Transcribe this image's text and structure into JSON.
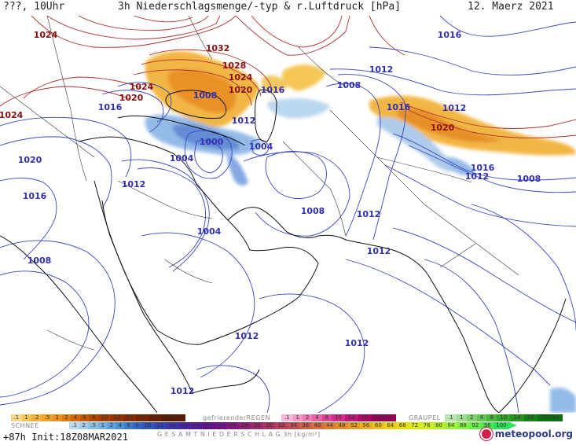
{
  "header": {
    "location_time": "???, 10Uhr",
    "title": "3h Niederschlagsmenge/-typ & r.Luftdruck [hPa]",
    "date": "12. Maerz 2021"
  },
  "isobar_labels": [
    {
      "text": "1024",
      "color": "#8a1010"
    },
    {
      "text": "1032",
      "color": "#8a1010"
    },
    {
      "text": "1028",
      "color": "#8a1010"
    },
    {
      "text": "1024",
      "color": "#8a1010"
    },
    {
      "text": "1024",
      "color": "#8a1010"
    },
    {
      "text": "1020",
      "color": "#8a1010"
    },
    {
      "text": "1020",
      "color": "#8a1010"
    },
    {
      "text": "1024",
      "color": "#8a1010"
    },
    {
      "text": "1016",
      "color": "#3030b0"
    },
    {
      "text": "1008",
      "color": "#3030b0"
    },
    {
      "text": "1016",
      "color": "#3030b0"
    },
    {
      "text": "1012",
      "color": "#3030b0"
    },
    {
      "text": "1008",
      "color": "#3030b0"
    },
    {
      "text": "1016",
      "color": "#3030b0"
    },
    {
      "text": "1016",
      "color": "#3030b0"
    },
    {
      "text": "1012",
      "color": "#3030b0"
    },
    {
      "text": "1020",
      "color": "#8a1010"
    },
    {
      "text": "1012",
      "color": "#3030b0"
    },
    {
      "text": "1000",
      "color": "#3030b0"
    },
    {
      "text": "1004",
      "color": "#3030b0"
    },
    {
      "text": "1004",
      "color": "#3030b0"
    },
    {
      "text": "1020",
      "color": "#3030b0"
    },
    {
      "text": "1016",
      "color": "#3030b0"
    },
    {
      "text": "1012",
      "color": "#3030b0"
    },
    {
      "text": "1016",
      "color": "#3030b0"
    },
    {
      "text": "1012",
      "color": "#3030b0"
    },
    {
      "text": "1008",
      "color": "#3030b0"
    },
    {
      "text": "1008",
      "color": "#3030b0"
    },
    {
      "text": "1012",
      "color": "#3030b0"
    },
    {
      "text": "1004",
      "color": "#3030b0"
    },
    {
      "text": "1012",
      "color": "#3030b0"
    },
    {
      "text": "1008",
      "color": "#3030b0"
    },
    {
      "text": "1012",
      "color": "#3030b0"
    },
    {
      "text": "1012",
      "color": "#3030b0"
    },
    {
      "text": "1012",
      "color": "#3030b0"
    }
  ],
  "legend": {
    "snow_label": "SCHNEE",
    "rain_label": "gefrierenderREGEN",
    "graupel_label": "GRAUPEL",
    "total_label": "G E S A M T N I E D E R S C H L A G   3h   [kg/m²]",
    "snow_values": [
      ".1",
      "1",
      ".2",
      ".5",
      "1",
      "2",
      "4",
      "6",
      "8",
      "10",
      "12",
      "14",
      "16",
      "18",
      "2025+"
    ],
    "snow_colors": [
      "#f5d68a",
      "#f3c65a",
      "#f0b43c",
      "#eea22a",
      "#ec901e",
      "#e07b14",
      "#d2680e",
      "#c25808",
      "#b04a06",
      "#a23e05",
      "#933404",
      "#852b03",
      "#762402",
      "#6a1e02",
      "#5c1902"
    ],
    "rain_values": [
      ".1",
      "1",
      "2",
      "4",
      "8",
      "10",
      "14",
      "16",
      "2025+"
    ],
    "rain_colors": [
      "#f7b7d6",
      "#f39ac6",
      "#ee7cb5",
      "#e860a5",
      "#df4494",
      "#d22c84",
      "#c21674",
      "#b00664",
      "#9c0056"
    ],
    "graupel_values": [
      ".1",
      "1",
      "2",
      "4",
      "8",
      "10",
      "14",
      "16",
      "2025+"
    ],
    "graupel_colors": [
      "#b9e6b0",
      "#9ddc91",
      "#80d072",
      "#64c455",
      "#4ab63b",
      "#36a52b",
      "#26921f",
      "#188016",
      "#0e6e10"
    ],
    "total_values": [
      ".1",
      "2",
      ".5",
      "1",
      "2",
      "4",
      "6",
      "8",
      "10",
      "12",
      "14",
      "16",
      "18",
      "20",
      "22",
      "24",
      "26",
      "28",
      "30",
      "32",
      "34",
      "36",
      "40",
      "44",
      "48",
      "52",
      "56",
      "60",
      "64",
      "68",
      "72",
      "76",
      "80",
      "84",
      "88",
      "92",
      "96",
      "100"
    ],
    "total_colors": [
      "#b8d8ee",
      "#a2cbe9",
      "#8cbde3",
      "#76aede",
      "#60a0d8",
      "#4a8fd2",
      "#3b7ccc",
      "#3468c4",
      "#3255bc",
      "#3344b4",
      "#3a35ac",
      "#4627a2",
      "#541b98",
      "#62128e",
      "#711188",
      "#80167f",
      "#8e1f76",
      "#9c2a6d",
      "#a83664",
      "#b4435b",
      "#bf5152",
      "#c95f49",
      "#d26e40",
      "#da7d37",
      "#e18d2f",
      "#e69d27",
      "#eaae20",
      "#ecbf1b",
      "#ebcf17",
      "#e6dd17",
      "#dbe81b",
      "#cbef22",
      "#b6f22b",
      "#9df335",
      "#82f23f",
      "#65ef48",
      "#47ea50",
      "#2be358"
    ],
    "total_arrow_color": "#2be358"
  },
  "footer": {
    "forecast": "+87h  Init:18Z08MAR2021"
  },
  "logo": {
    "text": "meteopool.org",
    "icon": "meteopool-ball-icon"
  }
}
